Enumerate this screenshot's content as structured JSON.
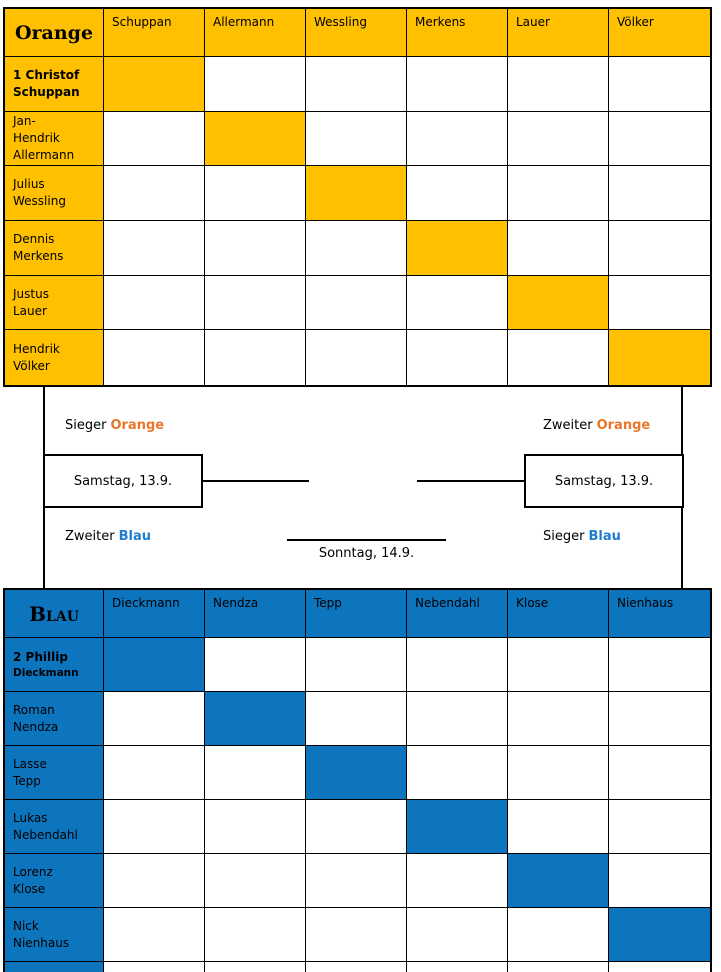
{
  "groups": {
    "orange": {
      "title": "Orange",
      "column_headers": [
        "Schuppan",
        "Allermann",
        "Wessling",
        "Merkens",
        "Lauer",
        "Völker"
      ],
      "players": [
        {
          "lines": [
            "1 Christof",
            "Schuppan"
          ],
          "bold": true
        },
        {
          "lines": [
            "Jan-",
            "Hendrik",
            "Allermann"
          ],
          "bold": false
        },
        {
          "lines": [
            "Julius",
            "Wessling"
          ],
          "bold": false
        },
        {
          "lines": [
            "Dennis",
            "Merkens"
          ],
          "bold": false
        },
        {
          "lines": [
            "Justus",
            "Lauer"
          ],
          "bold": false
        },
        {
          "lines": [
            "Hendrik",
            "Völker"
          ],
          "bold": false
        }
      ]
    },
    "blau": {
      "title": "Blau",
      "column_headers": [
        "Dieckmann",
        "Nendza",
        "Tepp",
        "Nebendahl",
        "Klose",
        "Nienhaus"
      ],
      "players": [
        {
          "lines": [
            "2 Phillip",
            "Dieckmann"
          ],
          "bold": true
        },
        {
          "lines": [
            "Roman",
            "Nendza"
          ],
          "bold": false
        },
        {
          "lines": [
            "Lasse",
            "Tepp"
          ],
          "bold": false
        },
        {
          "lines": [
            "Lukas",
            "Nebendahl"
          ],
          "bold": false
        },
        {
          "lines": [
            "Lorenz",
            "Klose"
          ],
          "bold": false
        },
        {
          "lines": [
            "Nick",
            "Nienhaus"
          ],
          "bold": false
        }
      ]
    }
  },
  "bracket": {
    "semifinal_left": {
      "top_prefix": "Sieger",
      "top_team": "Orange",
      "date": "Samstag, 13.9.",
      "bottom_prefix": "Zweiter",
      "bottom_team": "Blau"
    },
    "semifinal_right": {
      "top_prefix": "Zweiter",
      "top_team": "Orange",
      "date": "Samstag, 13.9.",
      "bottom_prefix": "Sieger",
      "bottom_team": "Blau"
    },
    "final": {
      "date": "Sonntag, 14.9."
    }
  },
  "colors": {
    "orange_fill": "#FFC000",
    "blau_fill": "#0D74BE",
    "orange_text": "#E8762B",
    "blau_text": "#1F7CCE",
    "border": "#000000"
  }
}
